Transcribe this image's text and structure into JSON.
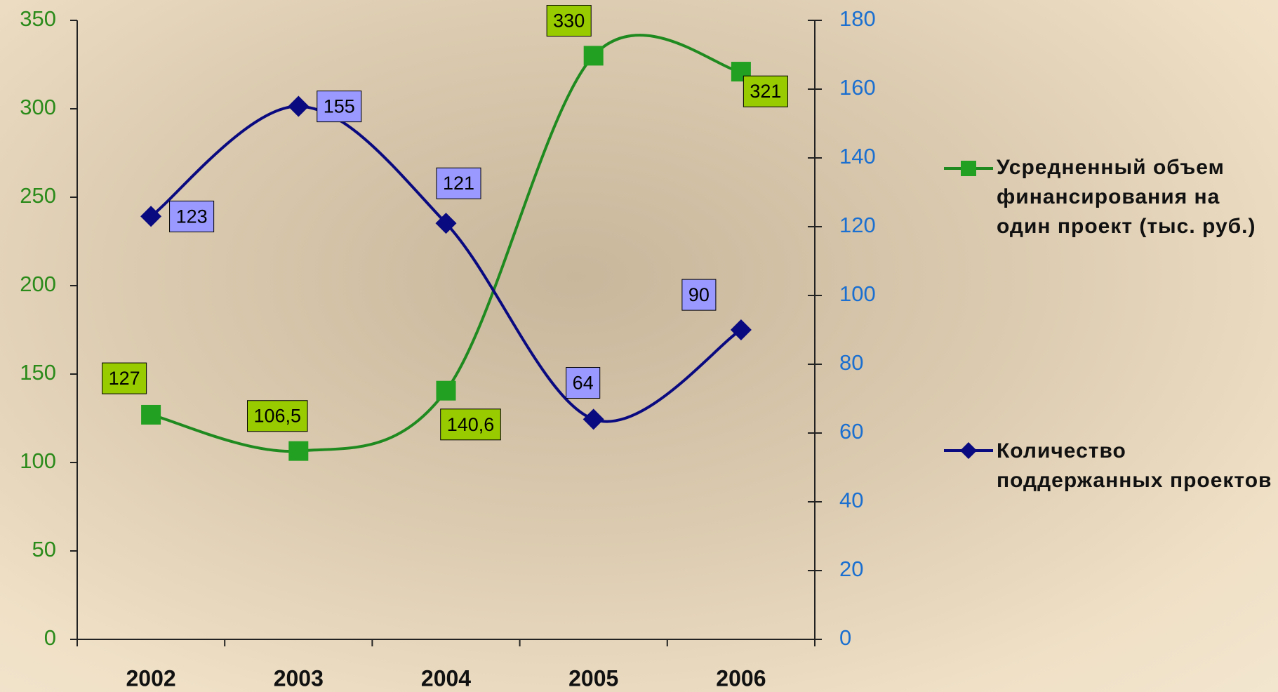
{
  "chart_data": {
    "type": "line",
    "categories": [
      "2002",
      "2003",
      "2004",
      "2005",
      "2006"
    ],
    "ylim": [
      0,
      350
    ],
    "yticks": [
      0,
      50,
      100,
      150,
      200,
      250,
      300,
      350
    ],
    "y2lim": [
      0,
      180
    ],
    "y2ticks": [
      0,
      20,
      40,
      60,
      80,
      100,
      120,
      140,
      160,
      180
    ],
    "series": [
      {
        "name": "Усредненный объем финансирования на один проект (тыс. руб.)",
        "color": "#1f8a1f",
        "values": [
          127,
          106.5,
          140.6,
          330,
          321
        ],
        "value_labels": [
          "127",
          "106,5",
          "140,6",
          "330",
          "321"
        ]
      },
      {
        "name": "Количество поддержанных проектов",
        "color": "#0a0a80",
        "axis": "y2",
        "values": [
          123,
          155,
          121,
          64,
          90
        ]
      }
    ]
  }
}
